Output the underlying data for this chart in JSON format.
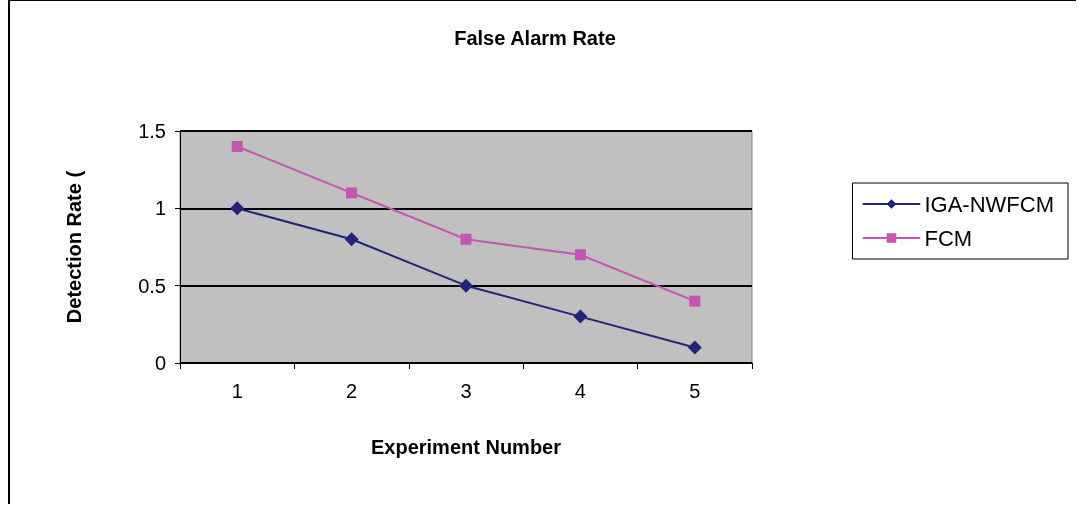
{
  "chart_data": {
    "type": "line",
    "title": "False Alarm Rate",
    "xlabel": "Experiment Number",
    "ylabel": "Detection Rate (",
    "categories": [
      "1",
      "2",
      "3",
      "4",
      "5"
    ],
    "series": [
      {
        "name": "IGA-NWFCM",
        "color": "#23237a",
        "marker": "diamond",
        "values": [
          1,
          0.8,
          0.5,
          0.3,
          0.1
        ]
      },
      {
        "name": "FCM",
        "color": "#c455b0",
        "marker": "square",
        "values": [
          1.4,
          1.1,
          0.8,
          0.7,
          0.4
        ]
      }
    ],
    "ylim": [
      0,
      1.5
    ],
    "yticks": [
      0,
      0.5,
      1,
      1.5
    ],
    "grid": "y",
    "legend": "right",
    "line_style": "solid"
  }
}
